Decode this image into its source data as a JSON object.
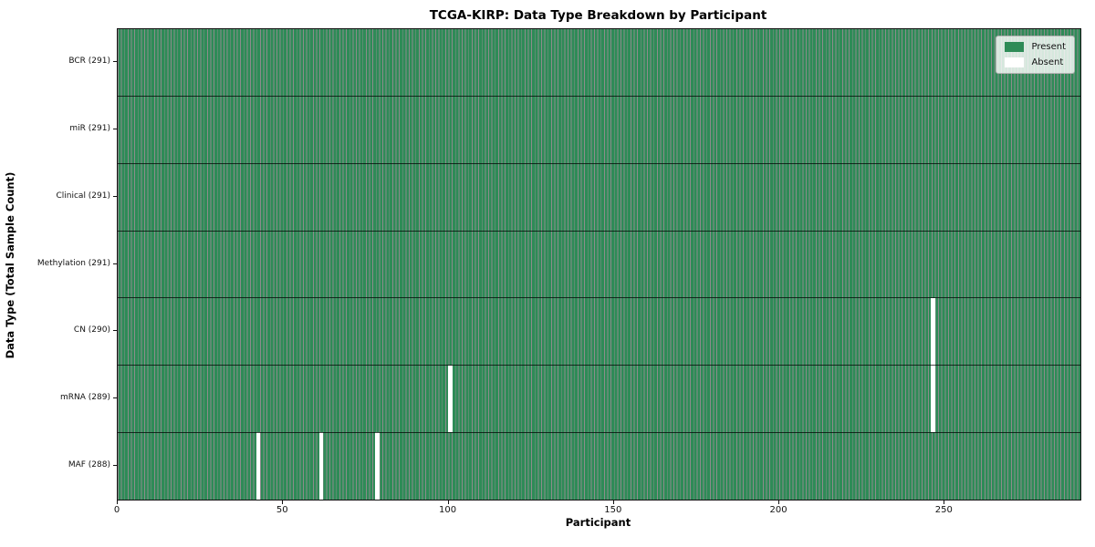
{
  "chart_data": {
    "type": "heatmap",
    "title": "TCGA-KIRP: Data Type Breakdown by Participant",
    "xlabel": "Participant",
    "ylabel": "Data Type (Total Sample Count)",
    "xlim": [
      0,
      291
    ],
    "n_participants": 291,
    "x_ticks": [
      0,
      50,
      100,
      150,
      200,
      250
    ],
    "legend_position": "upper right",
    "rows": [
      {
        "label": "BCR (291)",
        "present_count": 291,
        "absent_indices": []
      },
      {
        "label": "miR (291)",
        "present_count": 291,
        "absent_indices": []
      },
      {
        "label": "Clinical (291)",
        "present_count": 291,
        "absent_indices": []
      },
      {
        "label": "Methylation (291)",
        "present_count": 291,
        "absent_indices": []
      },
      {
        "label": "CN (290)",
        "present_count": 290,
        "absent_indices": [
          246
        ]
      },
      {
        "label": "mRNA (289)",
        "present_count": 289,
        "absent_indices": [
          100,
          246
        ]
      },
      {
        "label": "MAF (288)",
        "present_count": 288,
        "absent_indices": [
          42,
          61,
          78
        ]
      }
    ],
    "legend": [
      {
        "label": "Present",
        "color": "#2e8b57"
      },
      {
        "label": "Absent",
        "color": "#ffffff"
      }
    ],
    "colors": {
      "present": "#2e8b57",
      "absent": "#ffffff",
      "cell_edge_overlay": "rgba(0,0,0,0.45)",
      "row_separator": "rgba(0,0,0,0.72)",
      "plot_border": "#111111",
      "legend_bg": "rgba(255,255,255,0.8)",
      "legend_border": "#b0b0b0"
    }
  }
}
